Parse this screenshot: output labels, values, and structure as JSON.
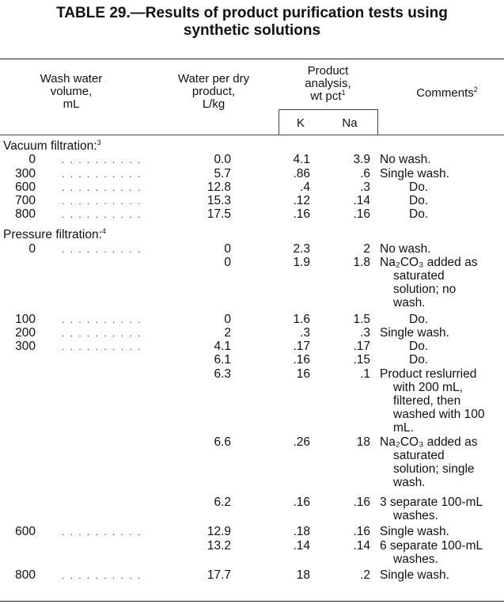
{
  "title": {
    "line1": "TABLE 29.—Results of product purification tests using",
    "line2": "synthetic solutions"
  },
  "headers": {
    "wash": [
      "Wash water",
      "volume,",
      "mL"
    ],
    "water": [
      "Water per dry",
      "product,",
      "L/kg"
    ],
    "analysis": [
      "Product",
      "analysis,",
      "wt pct"
    ],
    "analysis_note": "1",
    "k": "K",
    "na": "Na",
    "comments": "Comments",
    "comments_note": "2"
  },
  "sections": {
    "vacuum": {
      "label": "Vacuum filtration:",
      "note": "3"
    },
    "pressure": {
      "label": "Pressure filtration:",
      "note": "4"
    }
  },
  "leader": ". . . . . . . . . .",
  "rows": [
    {
      "wash": "0",
      "water": "0.0",
      "k": "4.1",
      "na": "3.9",
      "comment": [
        "No wash."
      ]
    },
    {
      "wash": "300",
      "water": "5.7",
      "k": ".86",
      "na": ".6",
      "comment": [
        "Single wash."
      ]
    },
    {
      "wash": "600",
      "water": "12.8",
      "k": ".4",
      "na": ".3",
      "comment": [
        "Do."
      ]
    },
    {
      "wash": "700",
      "water": "15.3",
      "k": ".12",
      "na": ".14",
      "comment": [
        "Do."
      ]
    },
    {
      "wash": "800",
      "water": "17.5",
      "k": ".16",
      "na": ".16",
      "comment": [
        "Do."
      ]
    },
    {
      "wash": "0",
      "water": "0",
      "k": "2.3",
      "na": "2",
      "comment": [
        "No wash."
      ]
    },
    {
      "wash": "",
      "water": "0",
      "k": "1.9",
      "na": "1.8",
      "comment": [
        "Na₂CO₃ added as",
        "saturated",
        "solution; no",
        "wash."
      ]
    },
    {
      "wash": "100",
      "water": "0",
      "k": "1.6",
      "na": "1.5",
      "comment": [
        "Do."
      ]
    },
    {
      "wash": "200",
      "water": "2",
      "k": ".3",
      "na": ".3",
      "comment": [
        "Single wash."
      ]
    },
    {
      "wash": "300",
      "water": "4.1",
      "k": ".17",
      "na": ".17",
      "comment": [
        "Do."
      ]
    },
    {
      "wash": "",
      "water": "6.1",
      "k": ".16",
      "na": ".15",
      "comment": [
        "Do."
      ]
    },
    {
      "wash": "",
      "water": "6.3",
      "k": "16",
      "na": ".1",
      "comment": [
        "Product reslurried",
        "with 200 mL,",
        "filtered, then",
        "washed with 100",
        "mL."
      ]
    },
    {
      "wash": "",
      "water": "6.6",
      "k": ".26",
      "na": "18",
      "comment": [
        "Na₂CO₃ added as",
        "saturated",
        "solution; single",
        "wash."
      ]
    },
    {
      "wash": "",
      "water": "6.2",
      "k": ".16",
      "na": ".16",
      "comment": [
        "3 separate 100-mL",
        "washes."
      ]
    },
    {
      "wash": "600",
      "water": "12.9",
      "k": ".18",
      "na": ".16",
      "comment": [
        "Single wash."
      ]
    },
    {
      "wash": "",
      "water": "13.2",
      "k": ".14",
      "na": ".14",
      "comment": [
        "6 separate 100-mL",
        "washes."
      ]
    },
    {
      "wash": "800",
      "water": "17.7",
      "k": "18",
      "na": ".2",
      "comment": [
        "Single wash."
      ]
    }
  ]
}
